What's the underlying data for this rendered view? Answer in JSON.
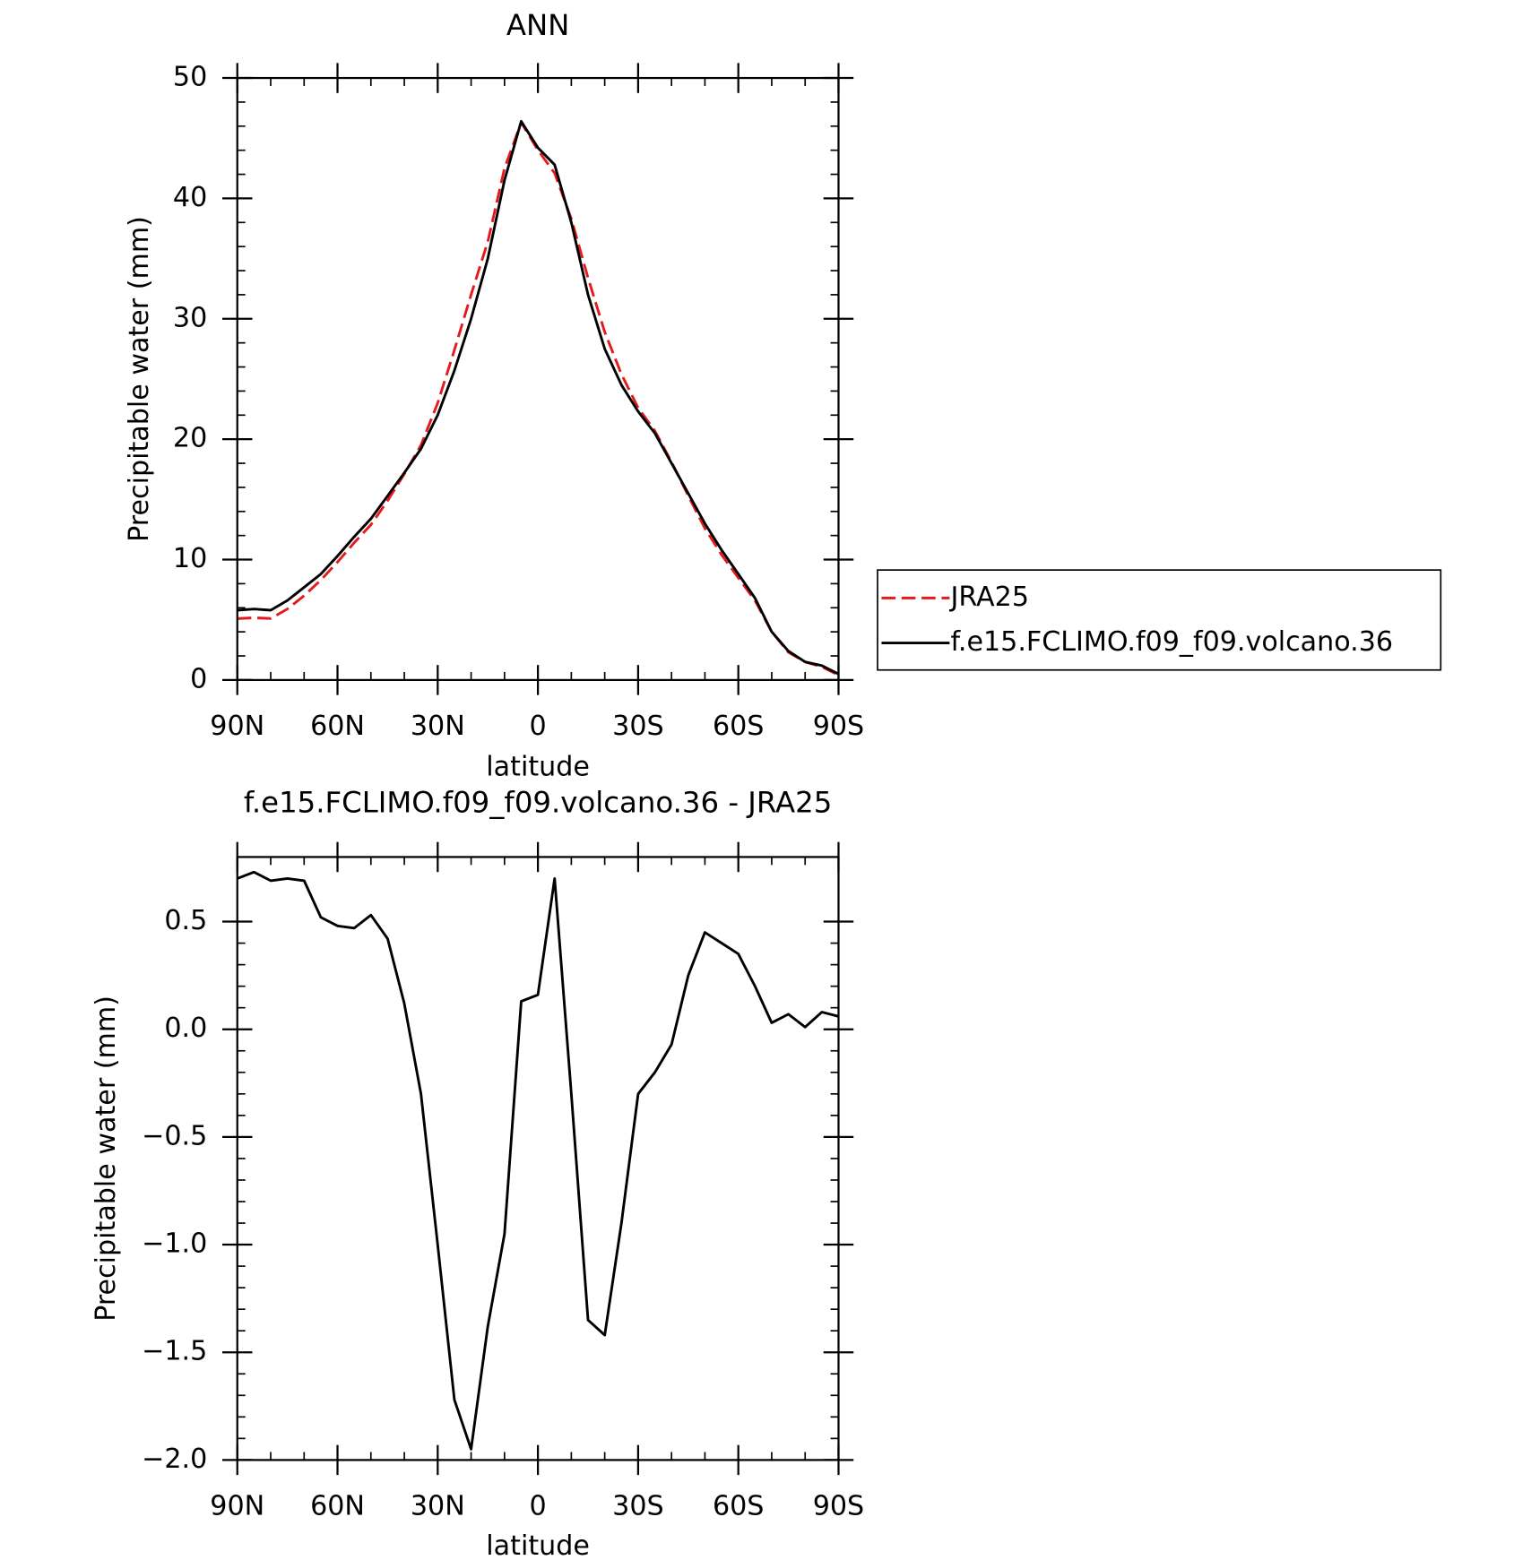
{
  "chart_data": [
    {
      "type": "line",
      "title": "ANN",
      "xlabel": "latitude",
      "ylabel": "Precipitable water (mm)",
      "x": [
        90,
        85,
        80,
        75,
        70,
        65,
        60,
        55,
        50,
        45,
        40,
        35,
        30,
        25,
        20,
        15,
        10,
        5,
        0,
        -5,
        -10,
        -15,
        -20,
        -25,
        -30,
        -35,
        -40,
        -45,
        -50,
        -55,
        -60,
        -65,
        -70,
        -75,
        -80,
        -85,
        -90
      ],
      "series": [
        {
          "name": "JRA25",
          "color": "#e41a1c",
          "dash": true,
          "values": [
            5.1,
            5.17,
            5.11,
            5.9,
            7.0,
            8.3,
            9.8,
            11.4,
            12.9,
            14.9,
            17.1,
            19.5,
            23.0,
            27.4,
            32.0,
            36.4,
            42.5,
            46.3,
            44.0,
            42.1,
            38.3,
            33.4,
            28.9,
            25.4,
            22.6,
            20.7,
            18.1,
            15.3,
            12.6,
            10.4,
            8.5,
            6.6,
            4.0,
            2.3,
            1.5,
            1.1,
            0.4
          ]
        },
        {
          "name": "f.e15.FCLIMO.f09_f09.volcano.36",
          "color": "#000000",
          "dash": false,
          "values": [
            5.8,
            5.9,
            5.8,
            6.6,
            7.7,
            8.8,
            10.3,
            11.9,
            13.4,
            15.3,
            17.2,
            19.2,
            22.0,
            25.7,
            30.0,
            35.0,
            41.5,
            46.4,
            44.2,
            42.8,
            38.0,
            32.0,
            27.5,
            24.5,
            22.3,
            20.5,
            18.0,
            15.5,
            13.0,
            10.8,
            8.8,
            6.8,
            4.0,
            2.4,
            1.5,
            1.2,
            0.5
          ]
        }
      ],
      "xlim": [
        90,
        -90
      ],
      "xticks": [
        {
          "value": 90,
          "label": "90N"
        },
        {
          "value": 60,
          "label": "60N"
        },
        {
          "value": 30,
          "label": "30N"
        },
        0,
        {
          "value": -30,
          "label": "30S"
        },
        {
          "value": -60,
          "label": "60S"
        },
        {
          "value": -90,
          "label": "90S"
        }
      ],
      "ylim": [
        0,
        50
      ],
      "yticks": [
        0,
        10,
        20,
        30,
        40,
        50
      ],
      "legend": "right"
    },
    {
      "type": "line",
      "title": "f.e15.FCLIMO.f09_f09.volcano.36 - JRA25",
      "xlabel": "latitude",
      "ylabel": "Precipitable water (mm)",
      "x": [
        90,
        85,
        80,
        75,
        70,
        65,
        60,
        55,
        50,
        45,
        40,
        35,
        30,
        25,
        20,
        15,
        10,
        5,
        0,
        -5,
        -10,
        -15,
        -20,
        -25,
        -30,
        -35,
        -40,
        -45,
        -50,
        -55,
        -60,
        -65,
        -70,
        -75,
        -80,
        -85,
        -90
      ],
      "series": [
        {
          "color": "#000000",
          "dash": false,
          "values": [
            0.7,
            0.73,
            0.69,
            0.7,
            0.69,
            0.52,
            0.48,
            0.47,
            0.53,
            0.42,
            0.12,
            -0.3,
            -1.0,
            -1.72,
            -1.95,
            -1.38,
            -0.95,
            0.13,
            0.16,
            0.7,
            -0.3,
            -1.35,
            -1.42,
            -0.9,
            -0.3,
            -0.2,
            -0.07,
            0.25,
            0.45,
            0.4,
            0.35,
            0.2,
            0.03,
            0.07,
            0.01,
            0.08,
            0.06
          ]
        }
      ],
      "xlim": [
        90,
        -90
      ],
      "xticks": [
        {
          "value": 90,
          "label": "90N"
        },
        {
          "value": 60,
          "label": "60N"
        },
        {
          "value": 30,
          "label": "30N"
        },
        0,
        {
          "value": -30,
          "label": "30S"
        },
        {
          "value": -60,
          "label": "60S"
        },
        {
          "value": -90,
          "label": "90S"
        }
      ],
      "ylim": [
        -2,
        0.8
      ],
      "yticks": [
        {
          "value": -2,
          "label": "−2.0"
        },
        {
          "value": -1.5,
          "label": "−1.5"
        },
        {
          "value": -1,
          "label": "−1.0"
        },
        {
          "value": -0.5,
          "label": "−0.5"
        },
        {
          "value": 0,
          "label": "0.0"
        },
        0.5
      ]
    }
  ]
}
